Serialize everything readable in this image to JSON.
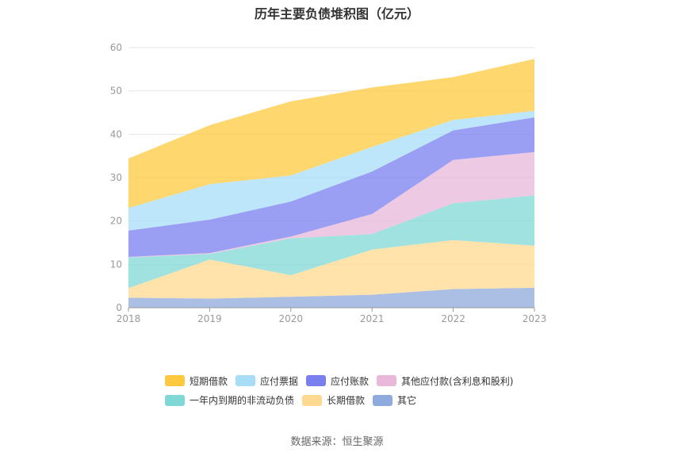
{
  "chart_data": {
    "type": "area",
    "title": "历年主要负债堆积图（亿元）",
    "categories": [
      "2018",
      "2019",
      "2020",
      "2021",
      "2022",
      "2023"
    ],
    "ylim": [
      0,
      60
    ],
    "yticks": [
      0,
      10,
      20,
      30,
      40,
      50,
      60
    ],
    "stacked": true,
    "grid": true,
    "legend_position": "bottom",
    "series": [
      {
        "name": "其它",
        "color": "#8faadc",
        "values": [
          2.3,
          2.1,
          2.5,
          3.0,
          4.3,
          4.6
        ]
      },
      {
        "name": "长期借款",
        "color": "#ffd98f",
        "values": [
          2.2,
          9.0,
          5.0,
          10.4,
          11.3,
          9.7
        ]
      },
      {
        "name": "一年内到期的非流动负债",
        "color": "#80d8d6",
        "values": [
          7.1,
          1.3,
          8.5,
          3.6,
          8.5,
          11.6
        ]
      },
      {
        "name": "其他应付款(含利息和股利)",
        "color": "#e8b7d9",
        "values": [
          0.1,
          0.2,
          0.4,
          4.6,
          10.0,
          10.0
        ]
      },
      {
        "name": "应付账款",
        "color": "#7a7ff0",
        "values": [
          6.1,
          7.7,
          8.1,
          9.8,
          6.8,
          8.0
        ]
      },
      {
        "name": "应付票据",
        "color": "#a8ddf8",
        "values": [
          5.2,
          8.2,
          6.0,
          5.7,
          2.4,
          1.5
        ]
      },
      {
        "name": "短期借款",
        "color": "#ffc93f",
        "values": [
          11.4,
          13.6,
          17.1,
          13.7,
          9.9,
          12.0
        ]
      }
    ],
    "legend_order": [
      "短期借款",
      "应付票据",
      "应付账款",
      "其他应付款(含利息和股利)",
      "一年内到期的非流动负债",
      "长期借款",
      "其它"
    ]
  },
  "source_text": "数据来源：恒生聚源"
}
